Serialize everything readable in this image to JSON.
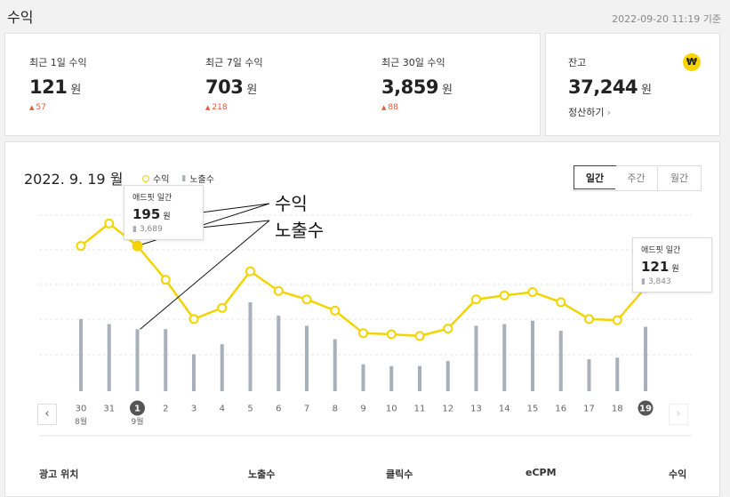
{
  "page": {
    "title": "수익",
    "timestamp": "2022-09-20 11:19 기준"
  },
  "stats": [
    {
      "label": "최근 1일 수익",
      "value": "121",
      "unit": "원",
      "delta": "57"
    },
    {
      "label": "최근 7일 수익",
      "value": "703",
      "unit": "원",
      "delta": "218"
    },
    {
      "label": "최근 30일 수익",
      "value": "3,859",
      "unit": "원",
      "delta": "88"
    }
  ],
  "balance": {
    "label": "잔고",
    "value": "37,244",
    "unit": "원",
    "settle_label": "정산하기",
    "badge_icon": "₩"
  },
  "chart_header": {
    "date": "2022. 9. 19 월",
    "legend_revenue": "수익",
    "legend_impressions": "노출수",
    "tabs": [
      "일간",
      "주간",
      "월간"
    ],
    "active_tab": "일간"
  },
  "tooltips": [
    {
      "title": "애드핏 일간",
      "value": "195",
      "unit": "원",
      "impressions": "3,689"
    },
    {
      "title": "애드핏 일간",
      "value": "121",
      "unit": "원",
      "impressions": "3,843"
    }
  ],
  "annotations": {
    "revenue": "수익",
    "impressions": "노출수"
  },
  "table_headers": [
    "광고 위치",
    "노출수",
    "클릭수",
    "eCPM",
    "수익"
  ],
  "colors": {
    "line": "#f2d400",
    "bar": "#a8b1bb",
    "delta": "#e55a3c",
    "badge": "#f7d600"
  },
  "chart_data": {
    "type": "bar+line",
    "categories": [
      "30",
      "31",
      "1",
      "2",
      "3",
      "4",
      "5",
      "6",
      "7",
      "8",
      "9",
      "10",
      "11",
      "12",
      "13",
      "14",
      "15",
      "16",
      "17",
      "18",
      "19"
    ],
    "month_labels": {
      "30": "8월",
      "1": "9월"
    },
    "highlighted": [
      "1",
      "19"
    ],
    "series": [
      {
        "name": "수익",
        "type": "line",
        "values": [
          195,
          235,
          195,
          135,
          65,
          85,
          150,
          115,
          100,
          80,
          40,
          38,
          35,
          48,
          100,
          107,
          113,
          95,
          65,
          63,
          121
        ]
      },
      {
        "name": "노출수",
        "type": "bar",
        "values": [
          4300,
          4000,
          3689,
          3700,
          2200,
          2800,
          5300,
          4500,
          3900,
          3100,
          1600,
          1500,
          1500,
          1800,
          3900,
          4000,
          4200,
          3600,
          1900,
          2000,
          3843
        ]
      }
    ]
  }
}
